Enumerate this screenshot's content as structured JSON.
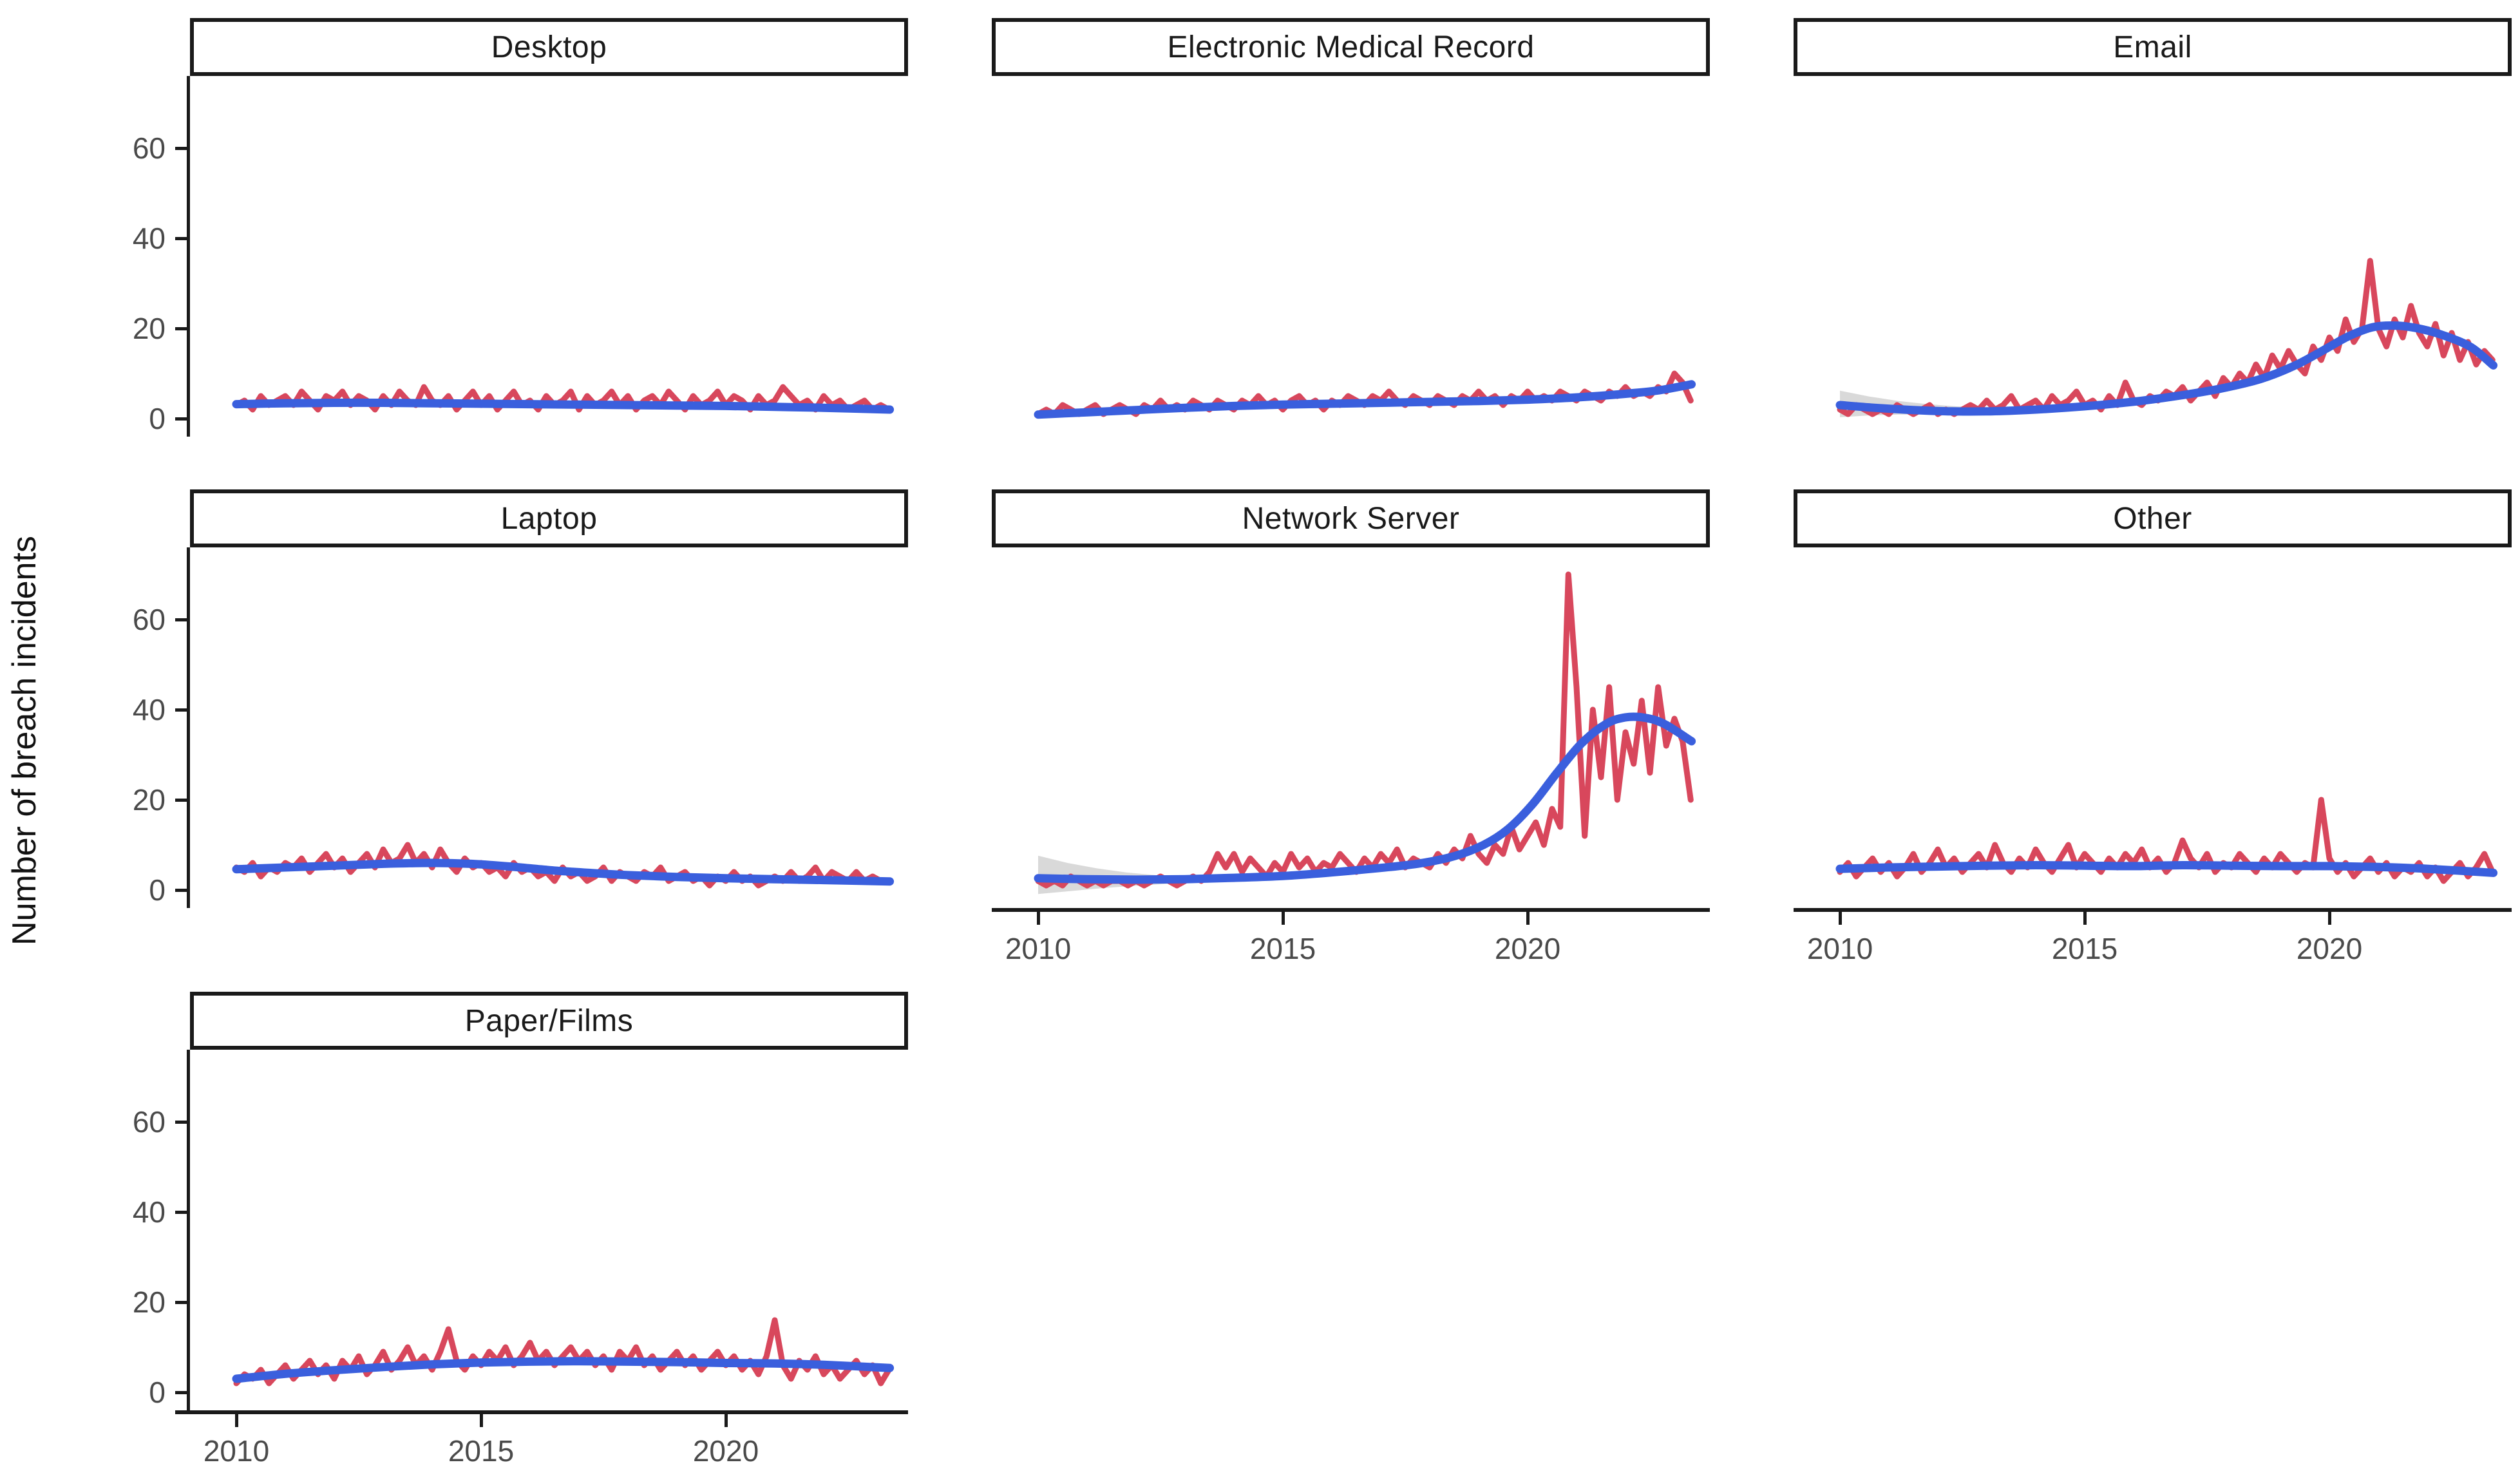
{
  "chart_data": {
    "type": "line",
    "title": "",
    "xlabel": "",
    "ylabel": "Number of breach incidents",
    "legend": "none",
    "grid": "off",
    "x_ticks": [
      "2010",
      "2015",
      "2020"
    ],
    "x_tick_values": [
      2010,
      2015,
      2020
    ],
    "y_ticks": [
      "0",
      "20",
      "40",
      "60"
    ],
    "y_tick_values": [
      0,
      20,
      40,
      60
    ],
    "x_range": [
      2009.05,
      2023.72
    ],
    "y_range": [
      -4,
      76
    ],
    "x_start": 2010,
    "x_step_years": 0.1666667,
    "raw_line_color": "#D8475C",
    "smooth_line_color": "#3A5FDD",
    "ci_band_color": "#9A9A9A",
    "axis_color": "#1a1a1a",
    "tick_label_color": "#4a4a4a",
    "facets": [
      {
        "title": "Desktop",
        "grid": {
          "row": 0,
          "col": 0,
          "show_y_axis": true,
          "show_x_axis": false
        },
        "values": [
          3,
          4,
          2,
          5,
          3,
          4,
          5,
          3,
          6,
          4,
          2,
          5,
          4,
          6,
          3,
          5,
          4,
          2,
          5,
          3,
          6,
          4,
          3,
          7,
          4,
          3,
          5,
          2,
          4,
          6,
          3,
          5,
          2,
          4,
          6,
          3,
          4,
          2,
          5,
          3,
          4,
          6,
          2,
          5,
          3,
          4,
          6,
          3,
          5,
          2,
          4,
          5,
          3,
          6,
          4,
          2,
          5,
          3,
          4,
          6,
          3,
          5,
          4,
          2,
          5,
          3,
          4,
          7,
          5,
          3,
          4,
          2,
          5,
          3,
          4,
          2,
          3,
          4,
          2,
          3,
          2
        ],
        "smooth": [
          [
            2010,
            3.2
          ],
          [
            2011,
            3.4
          ],
          [
            2012,
            3.5
          ],
          [
            2013,
            3.5
          ],
          [
            2014,
            3.4
          ],
          [
            2015,
            3.3
          ],
          [
            2016,
            3.2
          ],
          [
            2017,
            3.1
          ],
          [
            2018,
            3.0
          ],
          [
            2019,
            2.9
          ],
          [
            2020,
            2.8
          ],
          [
            2021,
            2.6
          ],
          [
            2022,
            2.4
          ],
          [
            2023.35,
            2.0
          ]
        ]
      },
      {
        "title": "Electronic Medical Record",
        "grid": {
          "row": 0,
          "col": 1,
          "show_y_axis": false,
          "show_x_axis": false
        },
        "values": [
          1,
          2,
          1,
          3,
          2,
          1,
          2,
          3,
          1,
          2,
          3,
          2,
          1,
          3,
          2,
          4,
          2,
          3,
          2,
          4,
          3,
          2,
          4,
          3,
          2,
          4,
          3,
          5,
          3,
          4,
          2,
          4,
          5,
          3,
          4,
          2,
          4,
          3,
          5,
          4,
          3,
          5,
          4,
          6,
          4,
          3,
          5,
          4,
          3,
          5,
          4,
          3,
          5,
          4,
          6,
          4,
          5,
          3,
          5,
          4,
          6,
          4,
          5,
          4,
          6,
          5,
          4,
          6,
          5,
          4,
          6,
          5,
          7,
          5,
          6,
          5,
          7,
          6,
          10,
          8,
          4
        ],
        "smooth": [
          [
            2010,
            0.9
          ],
          [
            2011,
            1.4
          ],
          [
            2012,
            1.9
          ],
          [
            2013,
            2.4
          ],
          [
            2014,
            2.8
          ],
          [
            2015,
            3.1
          ],
          [
            2016,
            3.3
          ],
          [
            2017,
            3.5
          ],
          [
            2018,
            3.7
          ],
          [
            2019,
            3.9
          ],
          [
            2020,
            4.2
          ],
          [
            2021,
            4.7
          ],
          [
            2022,
            5.5
          ],
          [
            2022.7,
            6.3
          ],
          [
            2023.35,
            7.6
          ]
        ]
      },
      {
        "title": "Email",
        "grid": {
          "row": 0,
          "col": 2,
          "show_y_axis": false,
          "show_x_axis": false
        },
        "values": [
          2,
          1,
          3,
          2,
          1,
          2,
          1,
          3,
          2,
          1,
          2,
          3,
          1,
          2,
          1,
          2,
          3,
          2,
          4,
          2,
          3,
          5,
          2,
          3,
          4,
          2,
          5,
          3,
          4,
          6,
          3,
          4,
          2,
          5,
          3,
          8,
          4,
          3,
          5,
          4,
          6,
          5,
          7,
          4,
          6,
          8,
          5,
          9,
          7,
          10,
          8,
          12,
          9,
          14,
          11,
          15,
          12,
          10,
          16,
          13,
          18,
          15,
          22,
          17,
          20,
          35,
          20,
          16,
          22,
          18,
          25,
          19,
          16,
          21,
          14,
          19,
          13,
          17,
          12,
          15,
          13
        ],
        "smooth": [
          [
            2010,
            3.0
          ],
          [
            2010.7,
            2.4
          ],
          [
            2011.5,
            1.9
          ],
          [
            2012.3,
            1.6
          ],
          [
            2013,
            1.6
          ],
          [
            2013.8,
            1.9
          ],
          [
            2014.6,
            2.4
          ],
          [
            2015.4,
            3.1
          ],
          [
            2016.2,
            4.0
          ],
          [
            2017,
            5.2
          ],
          [
            2017.8,
            6.7
          ],
          [
            2018.6,
            8.8
          ],
          [
            2019.3,
            11.8
          ],
          [
            2019.9,
            15.3
          ],
          [
            2020.4,
            18.3
          ],
          [
            2020.9,
            20.3
          ],
          [
            2021.4,
            20.6
          ],
          [
            2021.9,
            19.8
          ],
          [
            2022.4,
            18.2
          ],
          [
            2022.9,
            15.8
          ],
          [
            2023.35,
            11.8
          ]
        ],
        "ci": [
          [
            2010,
            6.2,
            0.3
          ],
          [
            2010.6,
            4.9,
            0.7
          ],
          [
            2011.2,
            3.9,
            0.9
          ],
          [
            2011.8,
            3.2,
            1.0
          ],
          [
            2012.4,
            2.7,
            1.0
          ],
          [
            2013,
            2.4,
            1.1
          ],
          [
            2013.6,
            2.4,
            1.3
          ],
          [
            2014.2,
            2.7,
            1.6
          ],
          [
            2014.8,
            3.2,
            2.0
          ]
        ]
      },
      {
        "title": "Laptop",
        "grid": {
          "row": 1,
          "col": 0,
          "show_y_axis": true,
          "show_x_axis": false
        },
        "values": [
          5,
          4,
          6,
          3,
          5,
          4,
          6,
          5,
          7,
          4,
          6,
          8,
          5,
          7,
          4,
          6,
          8,
          5,
          9,
          6,
          7,
          10,
          6,
          8,
          5,
          9,
          6,
          4,
          7,
          5,
          6,
          4,
          5,
          3,
          6,
          4,
          5,
          3,
          4,
          2,
          5,
          3,
          4,
          2,
          3,
          5,
          2,
          4,
          3,
          2,
          4,
          3,
          5,
          2,
          3,
          4,
          2,
          3,
          1,
          3,
          2,
          4,
          2,
          3,
          1,
          2,
          3,
          2,
          4,
          2,
          3,
          5,
          2,
          4,
          3,
          2,
          4,
          2,
          3,
          2,
          2
        ],
        "smooth": [
          [
            2010,
            4.6
          ],
          [
            2011,
            5.0
          ],
          [
            2012,
            5.4
          ],
          [
            2013,
            5.8
          ],
          [
            2014,
            6.0
          ],
          [
            2014.8,
            5.8
          ],
          [
            2015.6,
            5.2
          ],
          [
            2016.4,
            4.4
          ],
          [
            2017.2,
            3.8
          ],
          [
            2018,
            3.3
          ],
          [
            2019,
            2.9
          ],
          [
            2020,
            2.6
          ],
          [
            2021,
            2.4
          ],
          [
            2022,
            2.2
          ],
          [
            2023.35,
            1.9
          ]
        ]
      },
      {
        "title": "Network Server",
        "grid": {
          "row": 1,
          "col": 1,
          "show_y_axis": false,
          "show_x_axis": true
        },
        "values": [
          2,
          1,
          2,
          1,
          3,
          2,
          1,
          2,
          1,
          2,
          2,
          1,
          2,
          1,
          2,
          3,
          2,
          1,
          2,
          3,
          2,
          4,
          8,
          5,
          8,
          4,
          7,
          5,
          3,
          6,
          4,
          8,
          5,
          7,
          4,
          6,
          5,
          8,
          6,
          4,
          7,
          5,
          8,
          6,
          9,
          5,
          7,
          6,
          5,
          8,
          6,
          9,
          7,
          12,
          8,
          6,
          10,
          8,
          14,
          9,
          12,
          15,
          10,
          18,
          14,
          70,
          45,
          12,
          40,
          25,
          45,
          20,
          35,
          28,
          42,
          26,
          45,
          32,
          38,
          33,
          20
        ],
        "smooth": [
          [
            2010,
            2.6
          ],
          [
            2011,
            2.4
          ],
          [
            2012,
            2.3
          ],
          [
            2013,
            2.4
          ],
          [
            2014,
            2.7
          ],
          [
            2015,
            3.1
          ],
          [
            2016,
            3.9
          ],
          [
            2017,
            4.9
          ],
          [
            2017.8,
            5.9
          ],
          [
            2018.5,
            7.5
          ],
          [
            2019.1,
            10.0
          ],
          [
            2019.6,
            13.5
          ],
          [
            2020.1,
            19.0
          ],
          [
            2020.6,
            26.0
          ],
          [
            2021.1,
            32.5
          ],
          [
            2021.6,
            36.8
          ],
          [
            2022,
            38.3
          ],
          [
            2022.4,
            38.2
          ],
          [
            2022.8,
            36.8
          ],
          [
            2023.35,
            33.0
          ]
        ],
        "ci": [
          [
            2010,
            7.6,
            -0.9
          ],
          [
            2010.6,
            6.0,
            -0.3
          ],
          [
            2011.2,
            4.8,
            0.3
          ],
          [
            2011.8,
            3.9,
            0.8
          ],
          [
            2012.4,
            3.3,
            1.2
          ],
          [
            2013,
            3.0,
            1.6
          ],
          [
            2013.6,
            3.0,
            1.9
          ],
          [
            2014.2,
            3.2,
            2.2
          ]
        ]
      },
      {
        "title": "Other",
        "grid": {
          "row": 1,
          "col": 2,
          "show_y_axis": false,
          "show_x_axis": true
        },
        "values": [
          4,
          6,
          3,
          5,
          7,
          4,
          6,
          3,
          5,
          8,
          4,
          6,
          9,
          5,
          7,
          4,
          6,
          8,
          5,
          10,
          6,
          4,
          7,
          5,
          9,
          6,
          4,
          7,
          10,
          5,
          8,
          6,
          4,
          7,
          5,
          8,
          6,
          9,
          5,
          7,
          4,
          6,
          11,
          7,
          5,
          8,
          4,
          6,
          5,
          8,
          6,
          4,
          7,
          5,
          8,
          6,
          4,
          6,
          5,
          20,
          7,
          4,
          6,
          3,
          5,
          7,
          4,
          6,
          3,
          5,
          4,
          6,
          3,
          5,
          2,
          4,
          6,
          3,
          5,
          8,
          4
        ],
        "smooth": [
          [
            2010,
            4.7
          ],
          [
            2011,
            5.0
          ],
          [
            2012,
            5.2
          ],
          [
            2013,
            5.4
          ],
          [
            2014,
            5.5
          ],
          [
            2015,
            5.4
          ],
          [
            2016,
            5.3
          ],
          [
            2017,
            5.5
          ],
          [
            2018,
            5.4
          ],
          [
            2019,
            5.3
          ],
          [
            2020,
            5.3
          ],
          [
            2021,
            5.1
          ],
          [
            2022,
            4.7
          ],
          [
            2023.35,
            3.8
          ]
        ]
      },
      {
        "title": "Paper/Films",
        "grid": {
          "row": 2,
          "col": 0,
          "show_y_axis": true,
          "show_x_axis": true
        },
        "values": [
          2,
          4,
          3,
          5,
          2,
          4,
          6,
          3,
          5,
          7,
          4,
          6,
          3,
          7,
          5,
          8,
          4,
          6,
          9,
          5,
          7,
          10,
          6,
          8,
          5,
          9,
          14,
          7,
          5,
          8,
          6,
          9,
          7,
          10,
          6,
          8,
          11,
          7,
          9,
          6,
          8,
          10,
          7,
          9,
          6,
          8,
          5,
          9,
          7,
          10,
          6,
          8,
          5,
          7,
          9,
          6,
          8,
          5,
          7,
          9,
          6,
          8,
          5,
          7,
          4,
          8,
          16,
          6,
          3,
          7,
          5,
          8,
          4,
          6,
          3,
          5,
          7,
          4,
          6,
          2,
          5
        ],
        "smooth": [
          [
            2010,
            3.0
          ],
          [
            2011,
            4.1
          ],
          [
            2012,
            4.9
          ],
          [
            2013,
            5.6
          ],
          [
            2014,
            6.2
          ],
          [
            2015,
            6.6
          ],
          [
            2016,
            6.8
          ],
          [
            2017,
            6.9
          ],
          [
            2018,
            6.8
          ],
          [
            2019,
            6.7
          ],
          [
            2020,
            6.5
          ],
          [
            2021,
            6.4
          ],
          [
            2022,
            6.1
          ],
          [
            2023.35,
            5.4
          ]
        ]
      }
    ]
  }
}
